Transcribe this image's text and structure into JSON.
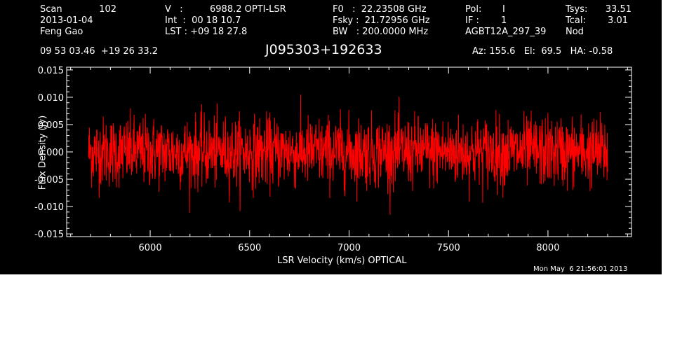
{
  "header": {
    "scan_label": "Scan",
    "scan_value": "102",
    "date": "2013-01-04",
    "observer": "Feng Gao",
    "v_label": "V   :",
    "v_value": "6988.2 OPTI-LSR",
    "int_text": "Int  :  00 18 10.7",
    "lst_text": "LST : +09 18 27.8",
    "f0_text": "F0   :  22.23508 GHz",
    "fsky_text": "Fsky :  21.72956 GHz",
    "bw_text": "BW   : 200.0000 MHz",
    "pol_label": "Pol:",
    "pol_value": "I",
    "if_label": "IF :",
    "if_value": "1",
    "project": "AGBT12A_297_39",
    "tsys_label": "Tsys:",
    "tsys_value": "33.51",
    "tcal_label": "Tcal:",
    "tcal_value": "3.01",
    "mode": "Nod",
    "coords": "09 53 03.46  +19 26 33.2",
    "source": "J095303+192633",
    "az_el_ha": "Az: 155.6   El:  69.5   HA: -0.58",
    "timestamp": "Mon May  6 21:56:01 2013"
  },
  "chart_data": {
    "type": "line",
    "xlabel": "LSR Velocity (km/s) OPTICAL",
    "ylabel": "Flux Density (Jy)",
    "xlim": [
      5580,
      8420
    ],
    "ylim": [
      -0.0155,
      0.0155
    ],
    "x_ticks": [
      6000,
      6500,
      7000,
      7500,
      8000
    ],
    "x_tick_labels": [
      "6000",
      "6500",
      "7000",
      "7500",
      "8000"
    ],
    "y_ticks": [
      -0.015,
      -0.01,
      -0.005,
      0.0,
      0.005,
      0.01,
      0.015
    ],
    "y_tick_labels": [
      "-0.015",
      "-0.010",
      "-0.005",
      "0.000",
      "0.005",
      "0.010",
      "0.015"
    ],
    "series": [
      {
        "color": "#ff0000",
        "x_range": [
          5690,
          8300
        ],
        "n_points": 1800,
        "mean": 0.0,
        "rms": 0.0032,
        "min": -0.0115,
        "max": 0.0113
      }
    ],
    "grid": false,
    "legend": "none"
  }
}
